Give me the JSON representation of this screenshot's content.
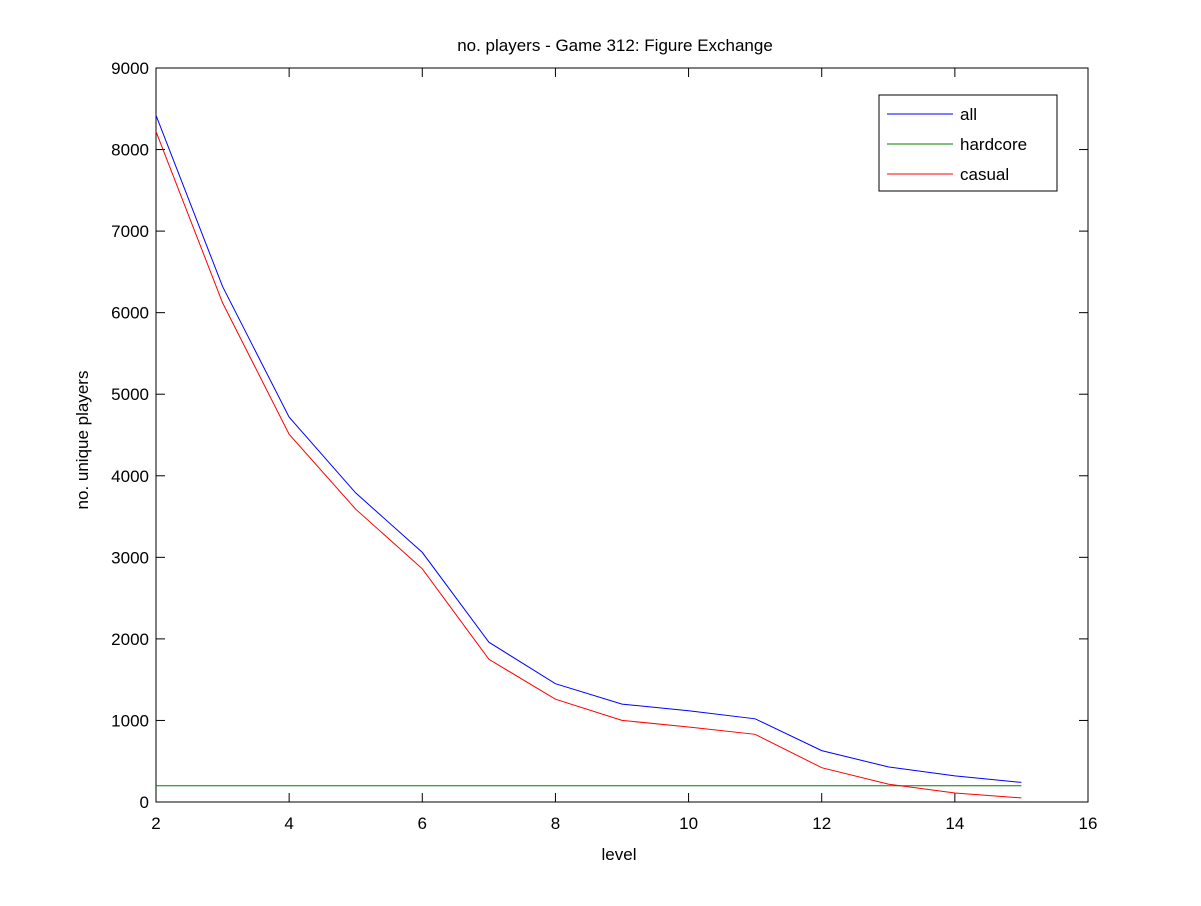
{
  "chart_data": {
    "type": "line",
    "title": "no. players - Game 312: Figure Exchange",
    "xlabel": "level",
    "ylabel": "no. unique players",
    "xlim": [
      2,
      16
    ],
    "ylim": [
      0,
      9000
    ],
    "xticks": [
      2,
      4,
      6,
      8,
      10,
      12,
      14,
      16
    ],
    "yticks": [
      0,
      1000,
      2000,
      3000,
      4000,
      5000,
      6000,
      7000,
      8000,
      9000
    ],
    "grid": false,
    "legend_position": "top-right",
    "x": [
      2,
      3,
      4,
      5,
      6,
      7,
      8,
      9,
      10,
      11,
      12,
      13,
      14,
      15
    ],
    "series": [
      {
        "name": "all",
        "color": "#0000ff",
        "values": [
          8420,
          6320,
          4720,
          3790,
          3060,
          1960,
          1450,
          1200,
          1120,
          1020,
          630,
          430,
          320,
          240
        ]
      },
      {
        "name": "hardcore",
        "color": "#008000",
        "values": [
          200,
          200,
          200,
          200,
          200,
          200,
          200,
          200,
          200,
          200,
          200,
          200,
          200,
          200
        ]
      },
      {
        "name": "casual",
        "color": "#ff0000",
        "values": [
          8220,
          6120,
          4510,
          3590,
          2860,
          1750,
          1260,
          1000,
          920,
          830,
          420,
          220,
          110,
          50
        ]
      }
    ]
  }
}
